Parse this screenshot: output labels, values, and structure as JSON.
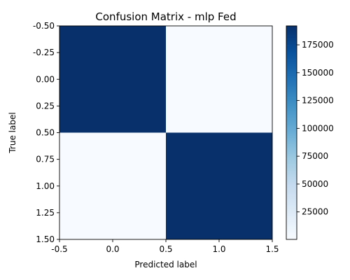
{
  "chart_data": {
    "type": "heatmap",
    "title": "Confusion Matrix - mlp Fed",
    "xlabel": "Predicted label",
    "ylabel": "True label",
    "xlim": [
      -0.5,
      1.5
    ],
    "ylim": [
      1.5,
      -0.5
    ],
    "x_ticks": [
      "-0.5",
      "0.0",
      "0.5",
      "1.0",
      "1.5"
    ],
    "y_ticks": [
      "-0.50",
      "-0.25",
      "0.00",
      "0.25",
      "0.50",
      "0.75",
      "1.00",
      "1.25",
      "1.50"
    ],
    "matrix": [
      [
        192000,
        300
      ],
      [
        300,
        192000
      ]
    ],
    "colormap": "Blues",
    "color_min": "#f7fbff",
    "color_max": "#08306b",
    "colorbar": {
      "min": 300,
      "max": 192000,
      "ticks": [
        "25000",
        "50000",
        "75000",
        "100000",
        "125000",
        "150000",
        "175000"
      ]
    }
  }
}
